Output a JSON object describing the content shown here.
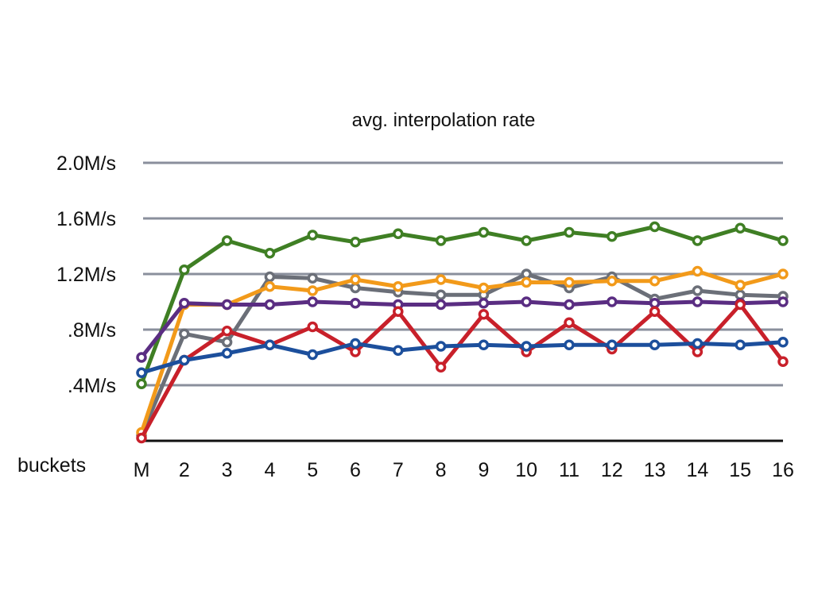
{
  "chart_data": {
    "type": "line",
    "title": "avg. interpolation rate",
    "xlabel": "buckets",
    "ylabel": "",
    "categories": [
      "M",
      "2",
      "3",
      "4",
      "5",
      "6",
      "7",
      "8",
      "9",
      "10",
      "11",
      "12",
      "13",
      "14",
      "15",
      "16"
    ],
    "ylim": [
      0,
      2.0
    ],
    "yticks": [
      0.4,
      0.8,
      1.2,
      1.6,
      2.0
    ],
    "ytick_labels": [
      ".4M/s",
      ".8M/s",
      "1.2M/s",
      "1.6M/s",
      "2.0M/s"
    ],
    "grid": true,
    "legend": "none",
    "series": [
      {
        "color": "#3f7f24",
        "values": [
          0.41,
          1.23,
          1.44,
          1.35,
          1.48,
          1.43,
          1.49,
          1.44,
          1.5,
          1.44,
          1.5,
          1.47,
          1.54,
          1.44,
          1.53,
          1.44
        ]
      },
      {
        "color": "#6b6f78",
        "values": [
          0.04,
          0.77,
          0.71,
          1.18,
          1.17,
          1.1,
          1.07,
          1.05,
          1.05,
          1.2,
          1.1,
          1.18,
          1.02,
          1.08,
          1.05,
          1.04
        ]
      },
      {
        "color": "#f29a1a",
        "values": [
          0.06,
          0.98,
          0.98,
          1.11,
          1.08,
          1.16,
          1.11,
          1.16,
          1.1,
          1.14,
          1.14,
          1.15,
          1.15,
          1.22,
          1.12,
          1.2
        ]
      },
      {
        "color": "#5a2d82",
        "values": [
          0.6,
          0.99,
          0.98,
          0.98,
          1.0,
          0.99,
          0.98,
          0.98,
          0.99,
          1.0,
          0.98,
          1.0,
          0.99,
          1.0,
          0.99,
          1.0
        ]
      },
      {
        "color": "#c8202a",
        "values": [
          0.02,
          0.58,
          0.79,
          0.69,
          0.82,
          0.64,
          0.93,
          0.53,
          0.91,
          0.64,
          0.85,
          0.66,
          0.93,
          0.64,
          0.98,
          0.57
        ]
      },
      {
        "color": "#1c4f9c",
        "values": [
          0.49,
          0.58,
          0.63,
          0.69,
          0.62,
          0.7,
          0.65,
          0.68,
          0.69,
          0.68,
          0.69,
          0.69,
          0.69,
          0.7,
          0.69,
          0.71
        ]
      }
    ]
  }
}
